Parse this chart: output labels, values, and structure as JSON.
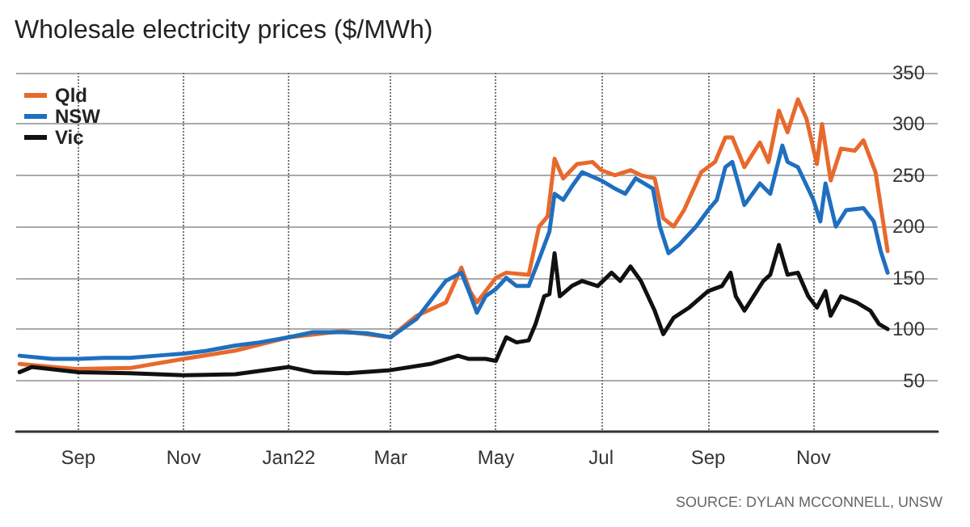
{
  "chart_data": {
    "type": "line",
    "title": "Wholesale electricity prices ($/MWh)",
    "annotations": [
      "SOURCE: DYLAN MCCONNELL, UNSW"
    ],
    "xlim": [
      "2021-07-27",
      "2023-01-12"
    ],
    "ylim": [
      0,
      350
    ],
    "yticks": [
      50,
      100,
      150,
      200,
      250,
      300,
      350
    ],
    "xticks": [
      {
        "value": "2021-09-01",
        "label": "Sep"
      },
      {
        "value": "2021-11-01",
        "label": "Nov"
      },
      {
        "value": "2022-01-01",
        "label": "Jan22"
      },
      {
        "value": "2022-03-01",
        "label": "Mar"
      },
      {
        "value": "2022-05-01",
        "label": "May"
      },
      {
        "value": "2022-07-01",
        "label": "Jul"
      },
      {
        "value": "2022-09-01",
        "label": "Sep"
      },
      {
        "value": "2022-11-01",
        "label": "Nov"
      }
    ],
    "grid": true,
    "legend": "top left",
    "marker": "none",
    "line_style": "solid",
    "series": [
      {
        "name": "Qld",
        "color": "#e8692c",
        "x": [
          "2021-07-29",
          "2021-08-17",
          "2021-09-01",
          "2021-10-01",
          "2021-11-01",
          "2021-12-01",
          "2022-01-01",
          "2022-02-01",
          "2022-02-15",
          "2022-03-01",
          "2022-03-16",
          "2022-04-02",
          "2022-04-11",
          "2022-04-16",
          "2022-04-20",
          "2022-05-01",
          "2022-05-07",
          "2022-05-20",
          "2022-05-26",
          "2022-05-31",
          "2022-06-04",
          "2022-06-09",
          "2022-06-17",
          "2022-06-26",
          "2022-07-01",
          "2022-07-09",
          "2022-07-18",
          "2022-07-24",
          "2022-08-01",
          "2022-08-06",
          "2022-08-12",
          "2022-08-18",
          "2022-08-28",
          "2022-09-05",
          "2022-09-11",
          "2022-09-15",
          "2022-09-22",
          "2022-10-01",
          "2022-10-06",
          "2022-10-12",
          "2022-10-17",
          "2022-10-23",
          "2022-10-28",
          "2022-11-03",
          "2022-11-06",
          "2022-11-11",
          "2022-11-17",
          "2022-11-25",
          "2022-11-30",
          "2022-12-07",
          "2022-12-14"
        ],
        "values": [
          66,
          63,
          61,
          62,
          71,
          79,
          92,
          98,
          95,
          92,
          113,
          126,
          160,
          137,
          126,
          150,
          155,
          153,
          200,
          210,
          266,
          247,
          261,
          263,
          255,
          250,
          255,
          250,
          247,
          208,
          200,
          216,
          253,
          263,
          287,
          287,
          258,
          282,
          263,
          313,
          292,
          324,
          305,
          261,
          300,
          245,
          276,
          274,
          284,
          253,
          176
        ]
      },
      {
        "name": "NSW",
        "color": "#1f6fbf",
        "x": [
          "2021-07-29",
          "2021-08-17",
          "2021-09-01",
          "2021-09-16",
          "2021-10-01",
          "2021-10-16",
          "2021-11-01",
          "2021-11-15",
          "2021-12-01",
          "2021-12-15",
          "2022-01-01",
          "2022-01-15",
          "2022-02-01",
          "2022-02-15",
          "2022-03-01",
          "2022-03-16",
          "2022-04-02",
          "2022-04-11",
          "2022-04-16",
          "2022-04-20",
          "2022-04-25",
          "2022-05-01",
          "2022-05-07",
          "2022-05-13",
          "2022-05-20",
          "2022-05-26",
          "2022-06-01",
          "2022-06-04",
          "2022-06-09",
          "2022-06-14",
          "2022-06-20",
          "2022-07-01",
          "2022-07-09",
          "2022-07-15",
          "2022-07-21",
          "2022-07-31",
          "2022-08-04",
          "2022-08-09",
          "2022-08-15",
          "2022-08-25",
          "2022-09-01",
          "2022-09-06",
          "2022-09-11",
          "2022-09-15",
          "2022-09-22",
          "2022-10-01",
          "2022-10-07",
          "2022-10-14",
          "2022-10-17",
          "2022-10-23",
          "2022-11-01",
          "2022-11-05",
          "2022-11-08",
          "2022-11-14",
          "2022-11-20",
          "2022-11-30",
          "2022-12-06",
          "2022-12-10",
          "2022-12-14"
        ],
        "values": [
          74,
          71,
          71,
          72,
          72,
          74,
          76,
          79,
          84,
          87,
          92,
          97,
          97,
          96,
          92,
          110,
          147,
          155,
          134,
          116,
          132,
          139,
          150,
          142,
          142,
          168,
          195,
          232,
          226,
          239,
          253,
          245,
          237,
          232,
          247,
          237,
          200,
          174,
          182,
          200,
          216,
          226,
          258,
          263,
          221,
          242,
          232,
          279,
          263,
          258,
          226,
          205,
          242,
          200,
          216,
          218,
          205,
          176,
          155
        ]
      },
      {
        "name": "Vic",
        "color": "#111111",
        "x": [
          "2021-07-29",
          "2021-08-05",
          "2021-09-01",
          "2021-10-01",
          "2021-11-01",
          "2021-12-01",
          "2022-01-01",
          "2022-01-15",
          "2022-02-04",
          "2022-03-01",
          "2022-03-24",
          "2022-04-09",
          "2022-04-15",
          "2022-04-25",
          "2022-05-01",
          "2022-05-07",
          "2022-05-13",
          "2022-05-20",
          "2022-05-24",
          "2022-05-29",
          "2022-06-01",
          "2022-06-04",
          "2022-06-07",
          "2022-06-14",
          "2022-06-20",
          "2022-06-29",
          "2022-07-07",
          "2022-07-12",
          "2022-07-18",
          "2022-07-24",
          "2022-08-01",
          "2022-08-06",
          "2022-08-12",
          "2022-08-21",
          "2022-09-01",
          "2022-09-09",
          "2022-09-14",
          "2022-09-17",
          "2022-09-22",
          "2022-10-03",
          "2022-10-07",
          "2022-10-12",
          "2022-10-17",
          "2022-10-23",
          "2022-10-29",
          "2022-11-03",
          "2022-11-08",
          "2022-11-11",
          "2022-11-17",
          "2022-11-26",
          "2022-12-04",
          "2022-12-09",
          "2022-12-14"
        ],
        "values": [
          58,
          63,
          58,
          57,
          55,
          56,
          63,
          58,
          57,
          60,
          66,
          74,
          71,
          71,
          69,
          92,
          87,
          89,
          105,
          132,
          134,
          174,
          132,
          142,
          147,
          142,
          155,
          147,
          161,
          147,
          118,
          95,
          111,
          121,
          137,
          142,
          155,
          132,
          118,
          147,
          153,
          182,
          153,
          155,
          132,
          121,
          137,
          113,
          132,
          126,
          118,
          105,
          100
        ]
      }
    ]
  }
}
